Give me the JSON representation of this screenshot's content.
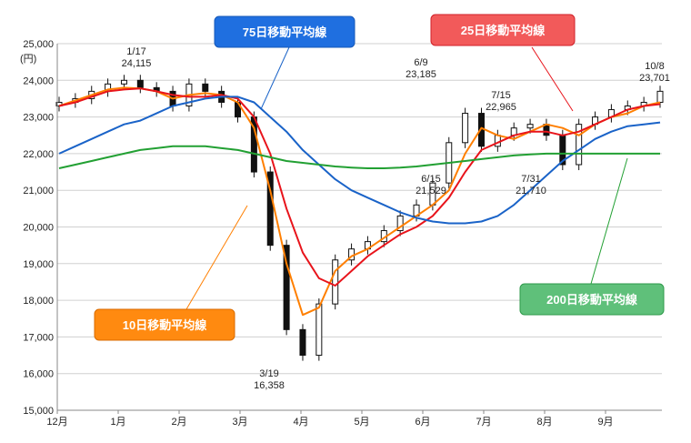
{
  "chart_data": {
    "type": "candlestick-with-moving-averages",
    "y_unit": "(円)",
    "ylim": [
      15000,
      25000
    ],
    "y_ticks": [
      "15,000",
      "16,000",
      "17,000",
      "18,000",
      "19,000",
      "20,000",
      "21,000",
      "22,000",
      "23,000",
      "24,000",
      "25,000"
    ],
    "x_ticks": [
      "12月",
      "1月",
      "2月",
      "3月",
      "4月",
      "5月",
      "6月",
      "7月",
      "8月",
      "9月"
    ],
    "grid": true,
    "series": [
      {
        "name": "10日移動平均線",
        "color": "#ff7f00",
        "values": [
          23300,
          23450,
          23600,
          23750,
          23800,
          23780,
          23700,
          23500,
          23600,
          23650,
          23600,
          23400,
          22700,
          21000,
          19000,
          17600,
          17800,
          18800,
          19200,
          19400,
          19700,
          20000,
          20300,
          20600,
          21000,
          22000,
          22700,
          22500,
          22400,
          22600,
          22800,
          22700,
          22500,
          22800,
          23000,
          23100,
          23300,
          23400
        ]
      },
      {
        "name": "25日移動平均線",
        "color": "#e8141b",
        "values": [
          23300,
          23400,
          23550,
          23700,
          23750,
          23780,
          23700,
          23600,
          23550,
          23550,
          23600,
          23500,
          23000,
          22000,
          20500,
          19300,
          18600,
          18400,
          18800,
          19200,
          19500,
          19800,
          20000,
          20300,
          20800,
          21500,
          22100,
          22300,
          22500,
          22600,
          22600,
          22500,
          22600,
          22800,
          23000,
          23200,
          23300,
          23350
        ]
      },
      {
        "name": "75日移動平均線",
        "color": "#1a63c8",
        "values": [
          22000,
          22200,
          22400,
          22600,
          22800,
          22900,
          23100,
          23300,
          23400,
          23500,
          23550,
          23550,
          23400,
          23000,
          22600,
          22100,
          21700,
          21300,
          21000,
          20800,
          20600,
          20400,
          20250,
          20150,
          20100,
          20100,
          20150,
          20300,
          20600,
          21000,
          21400,
          21800,
          22100,
          22400,
          22600,
          22750,
          22800,
          22850
        ]
      },
      {
        "name": "200日移動平均線",
        "color": "#22a033",
        "values": [
          21600,
          21700,
          21800,
          21900,
          22000,
          22100,
          22150,
          22200,
          22200,
          22200,
          22150,
          22100,
          22000,
          21900,
          21800,
          21750,
          21700,
          21650,
          21620,
          21600,
          21600,
          21620,
          21650,
          21700,
          21750,
          21800,
          21850,
          21900,
          21950,
          21980,
          22000,
          22000,
          22000,
          22000,
          22000,
          22000,
          22000,
          22000
        ]
      }
    ],
    "close_values": [
      23400,
      23500,
      23700,
      23900,
      24000,
      23800,
      23700,
      23300,
      23900,
      23700,
      23400,
      23000,
      21500,
      19500,
      17200,
      16500,
      17900,
      19100,
      19400,
      19600,
      19900,
      20300,
      20600,
      21200,
      22300,
      23100,
      22200,
      22500,
      22700,
      22800,
      22500,
      21700,
      22800,
      23000,
      23200,
      23300,
      23400,
      23701
    ],
    "annotations": [
      {
        "date": "1/17",
        "value": "24,115"
      },
      {
        "date": "3/19",
        "value": "16,358"
      },
      {
        "date": "6/9",
        "value": "23,185"
      },
      {
        "date": "6/15",
        "value": "21,529"
      },
      {
        "date": "7/15",
        "value": "22,965"
      },
      {
        "date": "7/31",
        "value": "21,710"
      },
      {
        "date": "10/8",
        "value": "23,701"
      }
    ]
  }
}
